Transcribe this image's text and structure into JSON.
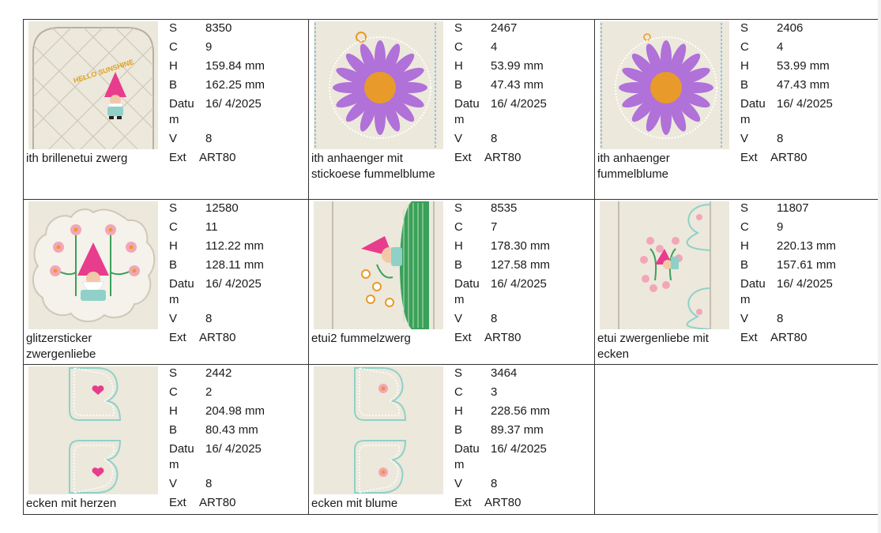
{
  "labels": {
    "s": "S",
    "c": "C",
    "h": "H",
    "b": "B",
    "datum": "Datu\nm",
    "v": "V",
    "ext": "Ext"
  },
  "designs": [
    {
      "name": "ith brillenetui zwerg",
      "s": "8350",
      "c": "9",
      "h": "159.84 mm",
      "b": "162.25 mm",
      "datum": "16/ 4/2025",
      "v": "8",
      "ext": "ART80",
      "thumb_text": "HELLO SUNSHINE"
    },
    {
      "name": "ith anhaenger mit stickoese fummelblume",
      "s": "2467",
      "c": "4",
      "h": "53.99 mm",
      "b": "47.43 mm",
      "datum": "16/ 4/2025",
      "v": "8",
      "ext": "ART80"
    },
    {
      "name": "ith anhaenger fummelblume",
      "s": "2406",
      "c": "4",
      "h": "53.99 mm",
      "b": "47.43 mm",
      "datum": "16/ 4/2025",
      "v": "8",
      "ext": "ART80"
    },
    {
      "name": "glitzersticker zwergenliebe",
      "s": "12580",
      "c": "11",
      "h": "112.22 mm",
      "b": "128.11 mm",
      "datum": "16/ 4/2025",
      "v": "8",
      "ext": "ART80"
    },
    {
      "name": "etui2 fummelzwerg",
      "s": "8535",
      "c": "7",
      "h": "178.30 mm",
      "b": "127.58 mm",
      "datum": "16/ 4/2025",
      "v": "8",
      "ext": "ART80"
    },
    {
      "name": "etui zwergenliebe mit ecken",
      "s": "11807",
      "c": "9",
      "h": "220.13 mm",
      "b": "157.61 mm",
      "datum": "16/ 4/2025",
      "v": "8",
      "ext": "ART80"
    },
    {
      "name": "ecken mit herzen",
      "s": "2442",
      "c": "2",
      "h": "204.98 mm",
      "b": "80.43 mm",
      "datum": "16/ 4/2025",
      "v": "8",
      "ext": "ART80"
    },
    {
      "name": "ecken mit blume",
      "s": "3464",
      "c": "3",
      "h": "228.56 mm",
      "b": "89.37 mm",
      "datum": "16/ 4/2025",
      "v": "8",
      "ext": "ART80"
    }
  ],
  "colors": {
    "fabric": "#ece8dc",
    "border": "#333333",
    "gnome_hat": "#e83c8c",
    "petal": "#b071d8",
    "flower_center": "#e89a2a",
    "stitch": "#7ab8d8",
    "leaf": "#3aa05a"
  }
}
